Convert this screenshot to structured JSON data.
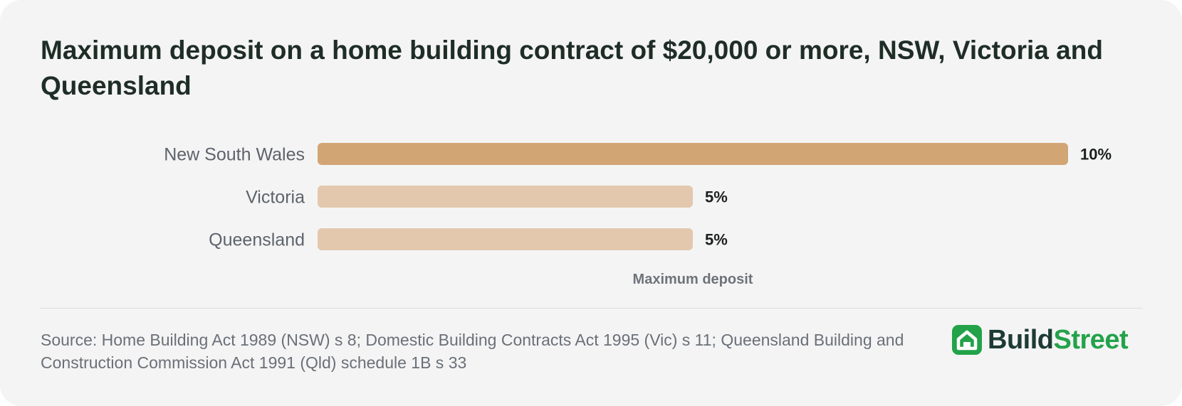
{
  "chart_data": {
    "type": "bar",
    "orientation": "horizontal",
    "title": "Maximum deposit on a home building contract of $20,000 or more, NSW, Victoria and Queensland",
    "categories": [
      "New South Wales",
      "Victoria",
      "Queensland"
    ],
    "values": [
      10,
      5,
      5
    ],
    "value_labels": [
      "10%",
      "5%",
      "5%"
    ],
    "xlabel": "Maximum deposit",
    "ylabel": "",
    "xlim": [
      0,
      10
    ],
    "grid": false,
    "highlight_index": 0,
    "colors": {
      "highlight": "#d2a574",
      "default": "#e3c8ad"
    }
  },
  "footer": {
    "source": "Source: Home Building Act 1989 (NSW) s 8; Domestic Building Contracts Act 1995 (Vic) s 11; Queensland Building and Construction Commission Act 1991 (Qld) schedule 1B s 33"
  },
  "brand": {
    "name_part1": "Build",
    "name_part2": "Street",
    "icon": "house-icon",
    "colors": {
      "dark": "#1d3b34",
      "green": "#23a24a"
    }
  }
}
